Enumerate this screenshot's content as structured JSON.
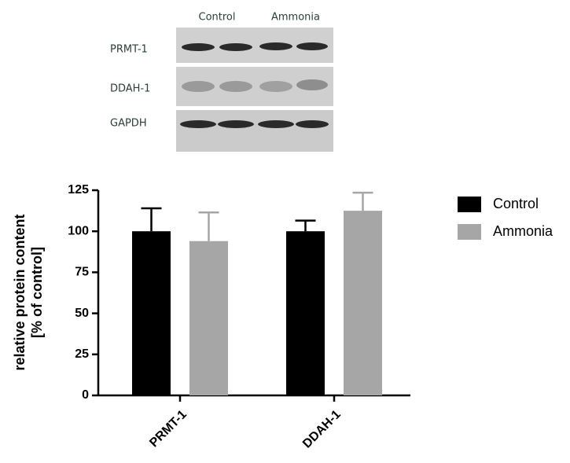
{
  "blot": {
    "lanes": [
      "Control",
      "Ammonia"
    ],
    "proteins": [
      "PRMT-1",
      "DDAH-1",
      "GAPDH"
    ]
  },
  "chart_data": {
    "type": "bar",
    "categories": [
      "PRMT-1",
      "DDAH-1"
    ],
    "series": [
      {
        "name": "Control",
        "color": "#000000",
        "values": [
          100,
          100
        ],
        "errors": [
          14,
          6.5
        ]
      },
      {
        "name": "Ammonia",
        "color": "#a6a6a6",
        "values": [
          94,
          112.5
        ],
        "errors": [
          17.5,
          11
        ]
      }
    ],
    "ylabel": [
      "relative protein content",
      "[% of control]"
    ],
    "ylim": [
      0,
      125
    ],
    "yticks": [
      0,
      25,
      50,
      75,
      100,
      125
    ]
  }
}
